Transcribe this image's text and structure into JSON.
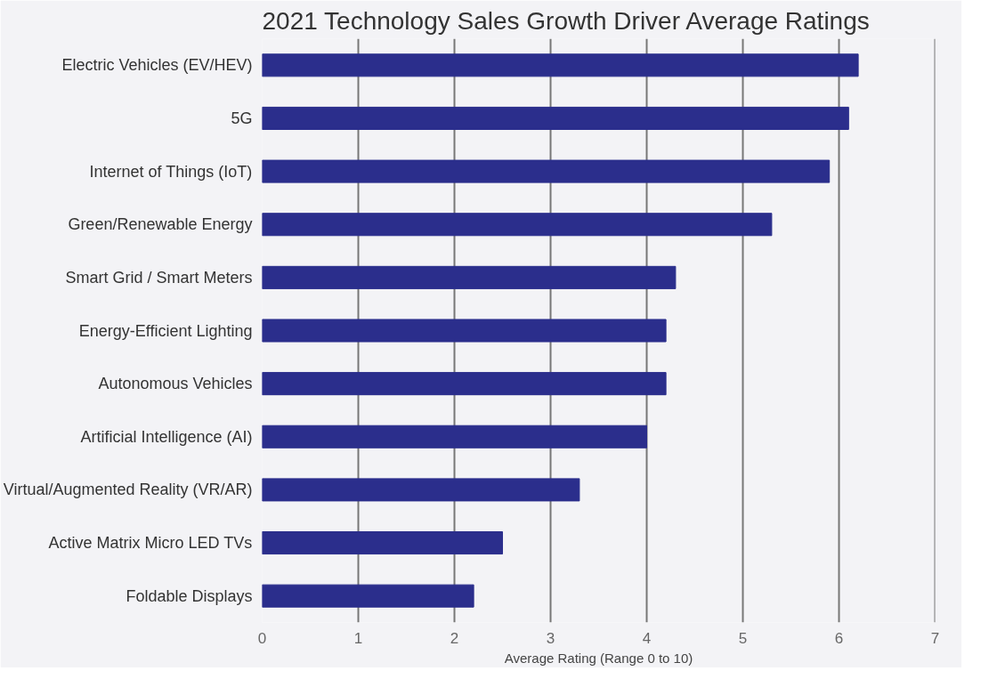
{
  "chart_data": {
    "type": "bar",
    "orientation": "horizontal",
    "title": "2021 Technology Sales Growth Driver Average Ratings",
    "xlabel": "Average Rating (Range 0 to 10)",
    "categories": [
      "Electric Vehicles (EV/HEV)",
      "5G",
      "Internet of Things (IoT)",
      "Green/Renewable Energy",
      "Smart Grid / Smart Meters",
      "Energy-Efficient Lighting",
      "Autonomous Vehicles",
      "Artificial Intelligence (AI)",
      "Virtual/Augmented Reality (VR/AR)",
      "Active Matrix Micro LED TVs",
      "Foldable Displays"
    ],
    "values": [
      6.2,
      6.1,
      5.9,
      5.3,
      4.3,
      4.2,
      4.2,
      4.0,
      3.3,
      2.5,
      2.2
    ],
    "color": "#2b2e8c",
    "xlim": [
      0,
      7
    ],
    "xticks": [
      0,
      1,
      2,
      3,
      4,
      5,
      6,
      7
    ],
    "grid": "x"
  }
}
